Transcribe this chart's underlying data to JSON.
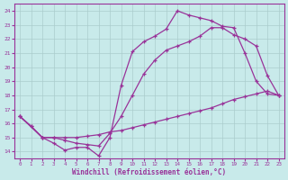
{
  "xlabel": "Windchill (Refroidissement éolien,°C)",
  "bg_color": "#c8eaea",
  "grid_color": "#aacccc",
  "line_color": "#993399",
  "xlim": [
    -0.5,
    23.5
  ],
  "ylim": [
    13.5,
    24.5
  ],
  "yticks": [
    14,
    15,
    16,
    17,
    18,
    19,
    20,
    21,
    22,
    23,
    24
  ],
  "xticks": [
    0,
    1,
    2,
    3,
    4,
    5,
    6,
    7,
    8,
    9,
    10,
    11,
    12,
    13,
    14,
    15,
    16,
    17,
    18,
    19,
    20,
    21,
    22,
    23
  ],
  "line1_x": [
    0,
    1,
    2,
    3,
    4,
    5,
    6,
    7,
    8,
    9,
    10,
    11,
    12,
    13,
    14,
    15,
    16,
    17,
    18,
    19,
    20,
    21,
    22,
    23
  ],
  "line1_y": [
    16.5,
    15.8,
    15.0,
    14.6,
    14.1,
    14.3,
    14.3,
    13.7,
    15.0,
    18.7,
    21.1,
    21.8,
    22.2,
    22.7,
    24.0,
    23.7,
    23.5,
    23.3,
    22.9,
    22.8,
    21.0,
    19.0,
    18.1,
    18.0
  ],
  "line2_x": [
    0,
    2,
    3,
    4,
    5,
    6,
    7,
    8,
    9,
    10,
    11,
    12,
    13,
    14,
    15,
    16,
    17,
    18,
    19,
    20,
    21,
    22,
    23
  ],
  "line2_y": [
    16.5,
    15.0,
    15.0,
    14.8,
    14.6,
    14.5,
    14.4,
    15.3,
    16.5,
    18.0,
    19.5,
    20.5,
    21.2,
    21.5,
    21.8,
    22.2,
    22.8,
    22.8,
    22.3,
    22.0,
    21.5,
    19.4,
    18.0
  ],
  "line3_x": [
    0,
    1,
    2,
    3,
    4,
    5,
    6,
    7,
    8,
    9,
    10,
    11,
    12,
    13,
    14,
    15,
    16,
    17,
    18,
    19,
    20,
    21,
    22,
    23
  ],
  "line3_y": [
    16.5,
    15.8,
    15.0,
    15.0,
    15.0,
    15.0,
    15.1,
    15.2,
    15.4,
    15.5,
    15.7,
    15.9,
    16.1,
    16.3,
    16.5,
    16.7,
    16.9,
    17.1,
    17.4,
    17.7,
    17.9,
    18.1,
    18.3,
    18.0
  ]
}
